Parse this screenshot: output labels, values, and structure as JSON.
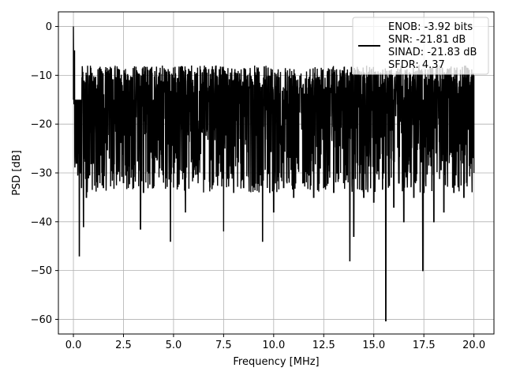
{
  "chart_data": {
    "type": "line",
    "xlabel": "Frequency [MHz]",
    "ylabel": "PSD [dB]",
    "xlim": [
      -0.75,
      21.0
    ],
    "ylim": [
      -63.0,
      3.0
    ],
    "xticks": [
      0.0,
      2.5,
      5.0,
      7.5,
      10.0,
      12.5,
      15.0,
      17.5,
      20.0
    ],
    "xtick_labels": [
      "0.0",
      "2.5",
      "5.0",
      "7.5",
      "10.0",
      "12.5",
      "15.0",
      "17.5",
      "20.0"
    ],
    "yticks": [
      0,
      -10,
      -20,
      -30,
      -40,
      -50,
      -60
    ],
    "ytick_labels": [
      "0",
      "−10",
      "−20",
      "−30",
      "−40",
      "−50",
      "−60"
    ],
    "grid": true,
    "legend_position": "top-right",
    "series_color": "#000000",
    "series": [
      {
        "name": "ENOB: -3.92 bits",
        "x": [
          0.0,
          0.05,
          0.1,
          0.15,
          0.2,
          0.25,
          0.3,
          0.35,
          0.4,
          0.5,
          0.55,
          0.65,
          0.75,
          1.0,
          1.5,
          2.0,
          2.5,
          3.0,
          3.35,
          3.5,
          4.0,
          4.5,
          4.85,
          5.0,
          5.5,
          5.6,
          6.0,
          6.5,
          7.0,
          7.5,
          8.0,
          8.5,
          9.0,
          9.45,
          9.8,
          10.0,
          10.5,
          11.0,
          11.5,
          12.0,
          12.5,
          13.0,
          13.5,
          13.8,
          14.0,
          14.5,
          15.0,
          15.5,
          15.6,
          16.0,
          16.5,
          17.0,
          17.45,
          17.5,
          18.0,
          18.5,
          19.0,
          19.5,
          20.0
        ],
        "y": [
          0.0,
          -5.0,
          -24.0,
          -28.0,
          -21.0,
          -26.0,
          -47.0,
          -30.0,
          -33.0,
          -41.0,
          -27.0,
          -35.0,
          -31.0,
          -28.0,
          -33.0,
          -30.0,
          -32.0,
          -33.0,
          -41.5,
          -34.0,
          -33.0,
          -32.0,
          -44.0,
          -33.0,
          -30.0,
          -38.0,
          -31.0,
          -34.0,
          -32.0,
          -42.0,
          -34.0,
          -33.0,
          -32.0,
          -44.0,
          -34.0,
          -38.0,
          -33.0,
          -35.0,
          -32.0,
          -35.0,
          -33.0,
          -34.0,
          -32.0,
          -48.0,
          -43.0,
          -35.0,
          -36.0,
          -30.0,
          -60.3,
          -37.0,
          -40.0,
          -35.0,
          -50.0,
          -34.0,
          -40.0,
          -38.0,
          -34.0,
          -35.0,
          -20.0
        ]
      }
    ],
    "legend_lines": [
      "ENOB: -3.92 bits",
      "SNR: -21.81 dB",
      "SINAD: -21.83 dB",
      "SFDR: 4.37"
    ]
  }
}
